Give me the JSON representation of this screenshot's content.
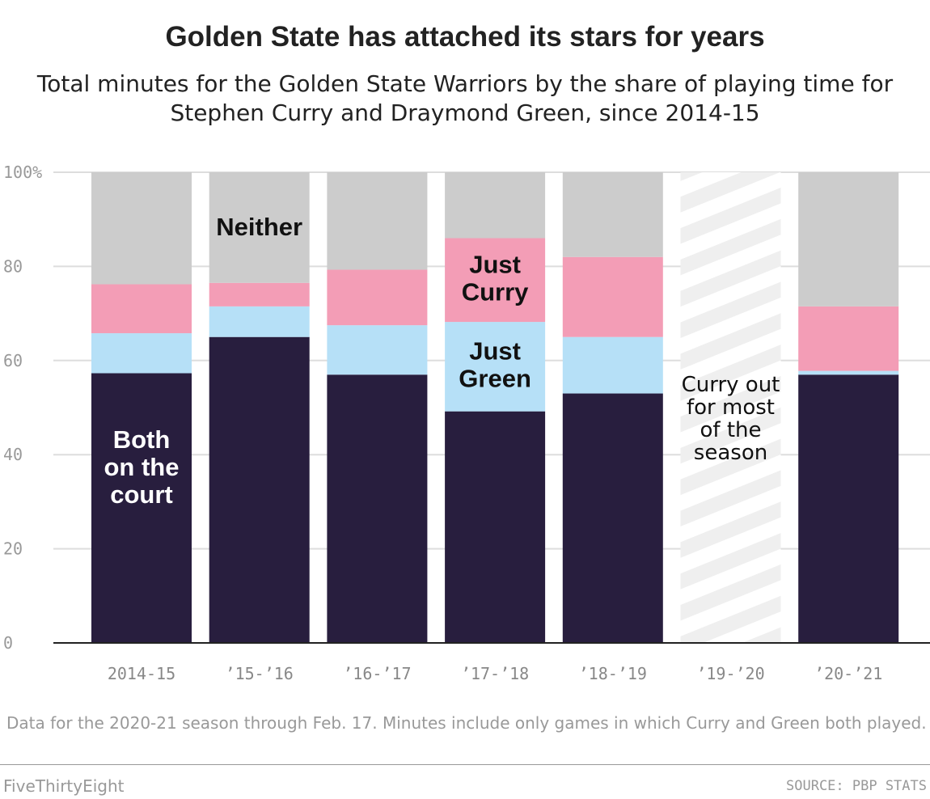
{
  "title": "Golden State has attached its stars for years",
  "subtitle": "Total minutes for the Golden State Warriors by the share of playing time for Stephen Curry and Draymond Green, since 2014-15",
  "note": "Data for the 2020-21 season through Feb. 17. Minutes include only games in which Curry and Green both played.",
  "brand": "FiveThirtyEight",
  "source": "SOURCE: PBP STATS",
  "colors": {
    "both": "#281e3e",
    "green": "#b6e0f7",
    "curry": "#f39db6",
    "neither": "#cccccc",
    "hatch": "#efefef",
    "grid": "#dddddd",
    "axis": "#222222"
  },
  "chart_data": {
    "type": "bar",
    "stacked": true,
    "categories": [
      "2014-15",
      "’15-’16",
      "’16-’17",
      "’17-’18",
      "’18-’19",
      "’19-’20",
      "’20-’21"
    ],
    "series": [
      {
        "name": "Both on the court",
        "key": "both",
        "values": [
          57.3,
          65.0,
          57.0,
          49.2,
          53.0,
          null,
          57.0
        ]
      },
      {
        "name": "Just Green",
        "key": "green",
        "values": [
          8.5,
          6.5,
          10.5,
          19.0,
          12.0,
          null,
          0.8
        ]
      },
      {
        "name": "Just Curry",
        "key": "curry",
        "values": [
          10.4,
          5.0,
          11.8,
          17.8,
          17.0,
          null,
          13.7
        ]
      },
      {
        "name": "Neither",
        "key": "neither",
        "values": [
          23.8,
          23.5,
          20.7,
          14.0,
          18.0,
          null,
          28.5
        ]
      }
    ],
    "missing": [
      {
        "category_index": 5,
        "note": "Curry out for most of the season"
      }
    ],
    "yticks": [
      0,
      20,
      40,
      60,
      80,
      100
    ],
    "ytick_labels": [
      "0",
      "20",
      "40",
      "60",
      "80",
      "100%"
    ],
    "ylim": [
      0,
      100
    ],
    "xlabel": "",
    "ylabel": "",
    "annotations": {
      "both": [
        "Both",
        "on the",
        "court"
      ],
      "neither": [
        "Neither"
      ],
      "curry": [
        "Just",
        "Curry"
      ],
      "green": [
        "Just",
        "Green"
      ],
      "missing": [
        "Curry out",
        "for most",
        "of the",
        "season"
      ]
    }
  }
}
